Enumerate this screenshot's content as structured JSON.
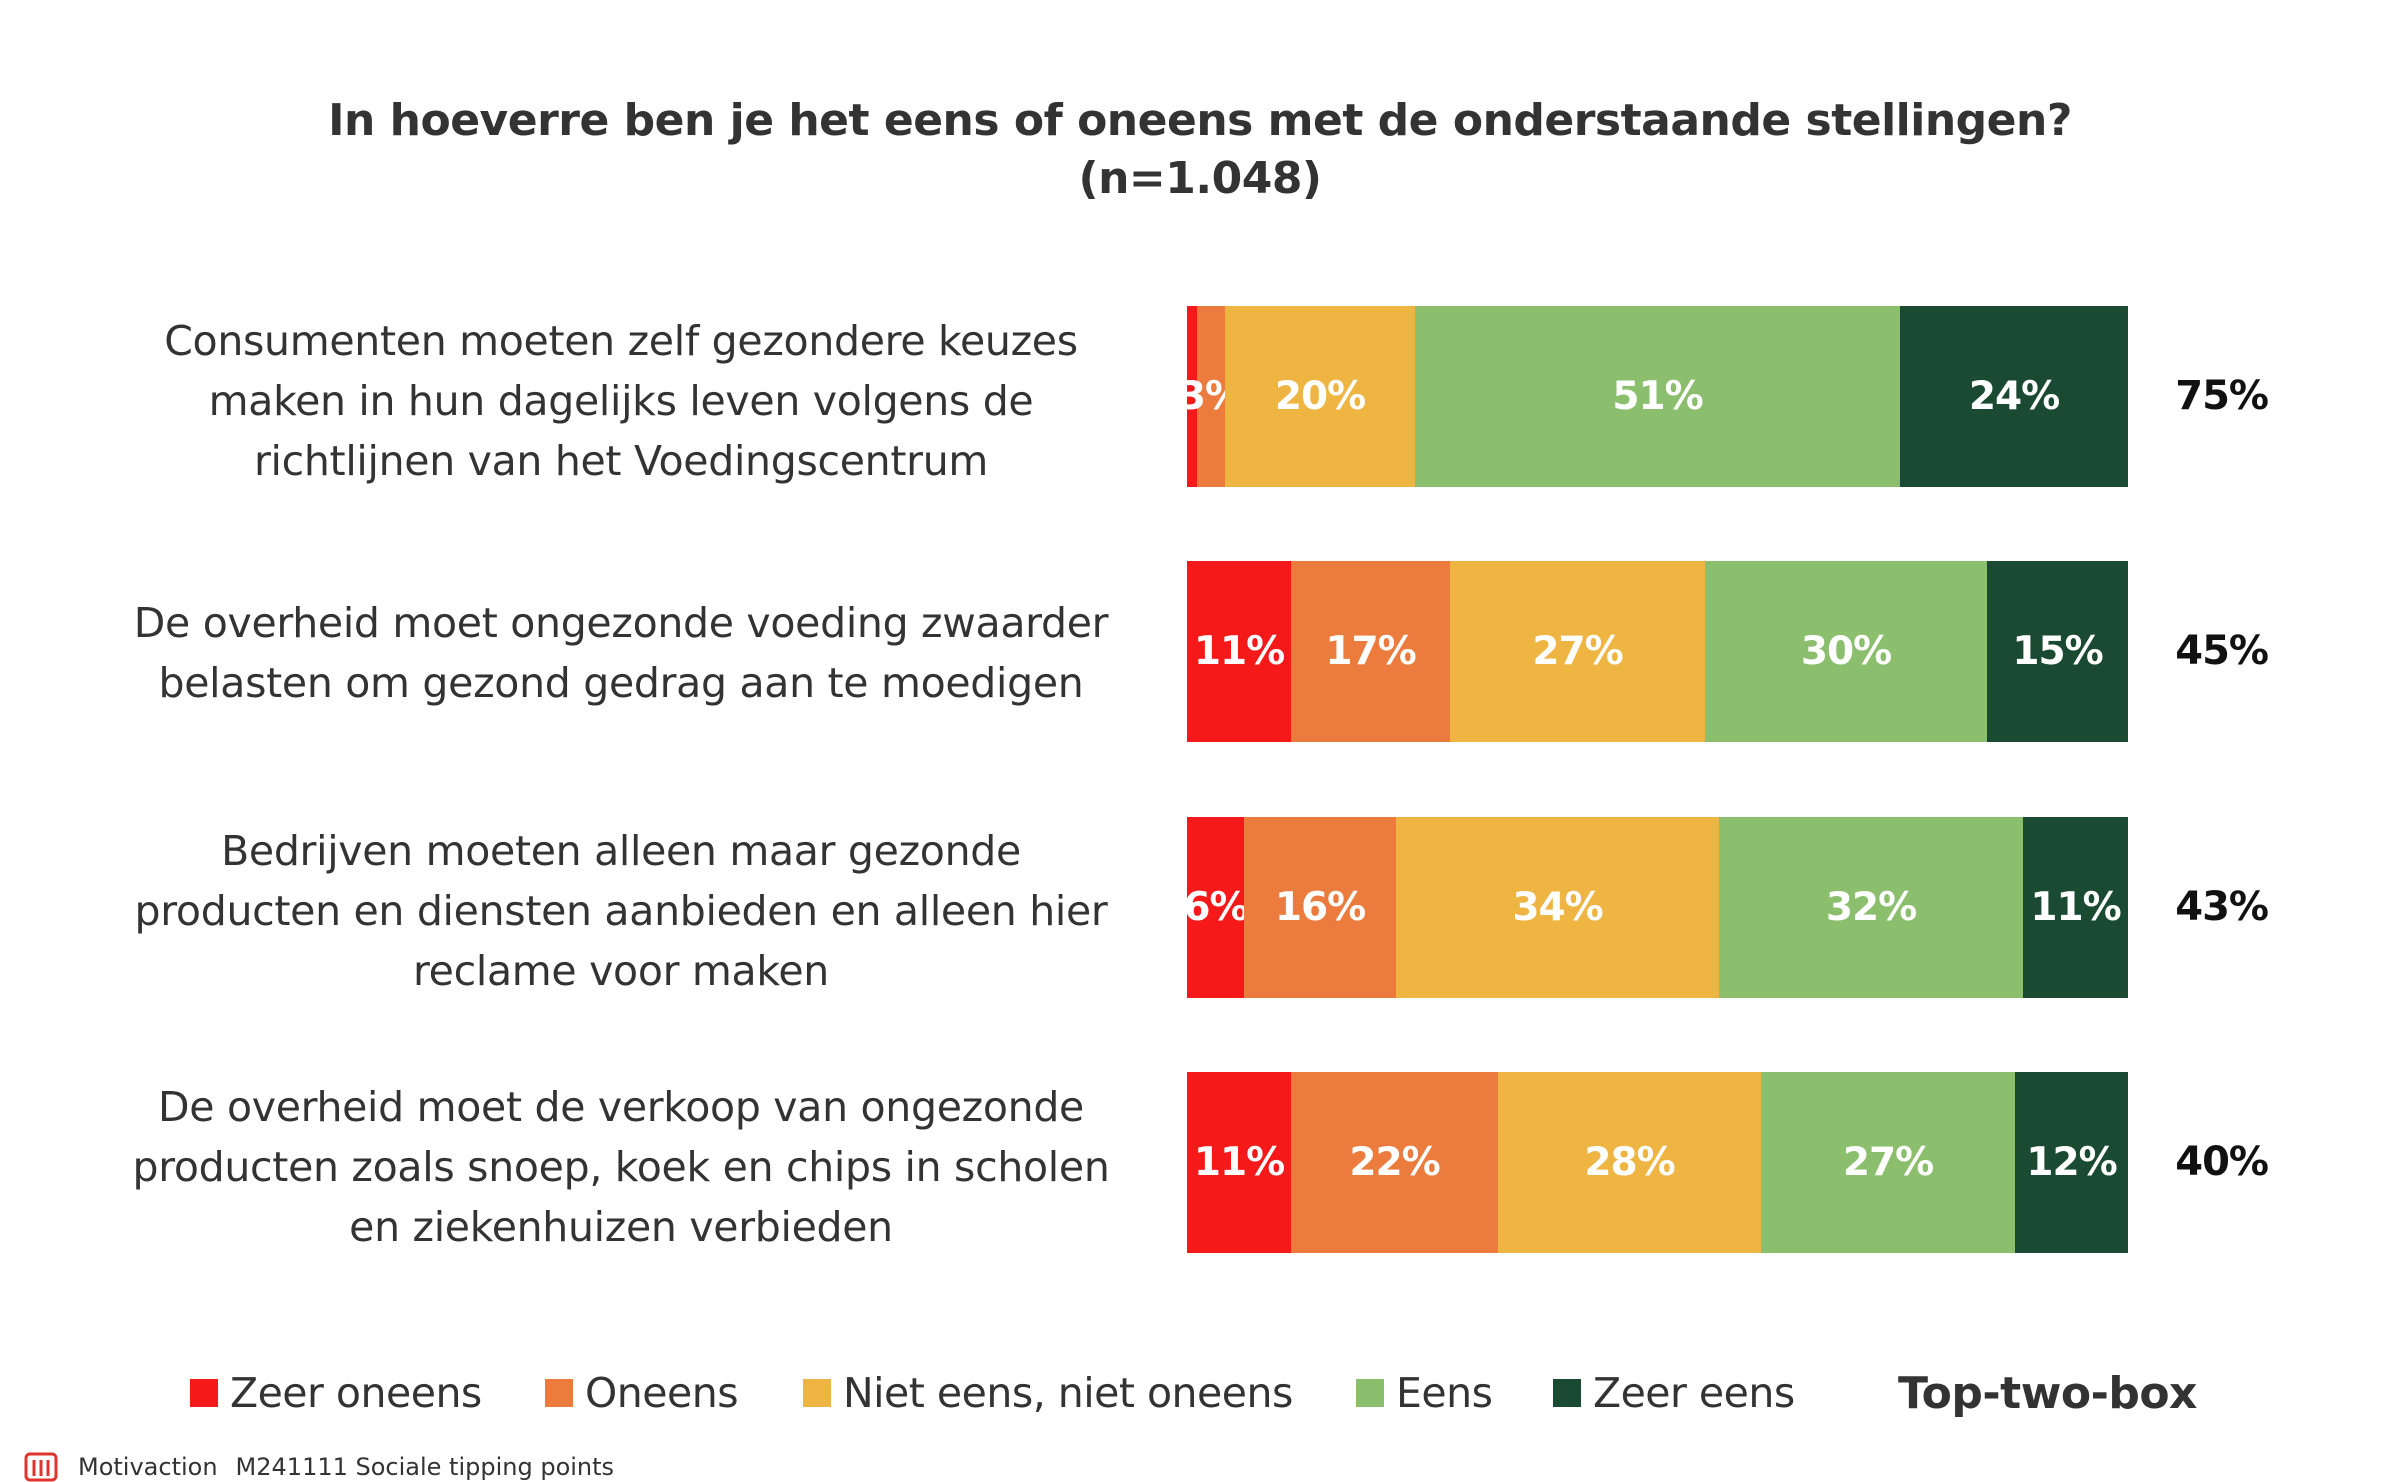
{
  "chart_data": {
    "type": "bar",
    "orientation": "horizontal",
    "stacked": true,
    "normalized": true,
    "title": "In hoeverre ben je het eens of oneens met de onderstaande stellingen?",
    "subtitle": "(n=1.048)",
    "categories": [
      "Consumenten moeten zelf gezondere keuzes maken in hun dagelijks leven volgens de richtlijnen van het Voedingscentrum",
      "De overheid moet ongezonde voeding zwaarder belasten om gezond gedrag aan te moedigen",
      "Bedrijven moeten alleen maar gezonde producten en diensten aanbieden en alleen hier reclame voor maken",
      "De overheid moet de verkoop van ongezonde producten zoals snoep, koek en chips in scholen en ziekenhuizen verbieden"
    ],
    "category_lines": [
      [
        "Consumenten moeten zelf gezondere keuzes",
        "maken in hun dagelijks leven volgens de",
        "richtlijnen van het Voedingscentrum"
      ],
      [
        "De overheid moet ongezonde voeding zwaarder",
        "belasten om gezond gedrag aan te moedigen"
      ],
      [
        "Bedrijven moeten alleen maar gezonde",
        "producten en diensten aanbieden en alleen hier",
        "reclame voor maken"
      ],
      [
        "De overheid moet de verkoop van ongezonde",
        "producten zoals snoep, koek en chips in scholen",
        "en ziekenhuizen verbieden"
      ]
    ],
    "series": [
      {
        "name": "Zeer oneens",
        "color": "#F5191A",
        "values": [
          1,
          11,
          6,
          11
        ],
        "labels": [
          "",
          "11%",
          "6%",
          "11%"
        ]
      },
      {
        "name": "Oneens",
        "color": "#EB7C3E",
        "values": [
          3,
          17,
          16,
          22
        ],
        "labels": [
          "3%",
          "17%",
          "16%",
          "22%"
        ]
      },
      {
        "name": "Niet eens, niet oneens",
        "color": "#EEB542",
        "values": [
          20,
          27,
          34,
          28
        ],
        "labels": [
          "20%",
          "27%",
          "34%",
          "28%"
        ]
      },
      {
        "name": "Eens",
        "color": "#8BBF6E",
        "values": [
          51,
          30,
          32,
          27
        ],
        "labels": [
          "51%",
          "30%",
          "32%",
          "27%"
        ]
      },
      {
        "name": "Zeer eens",
        "color": "#1B4A32",
        "values": [
          24,
          15,
          11,
          12
        ],
        "labels": [
          "24%",
          "15%",
          "11%",
          "12%"
        ]
      }
    ],
    "top_two_box": {
      "name": "Top-two-box",
      "labels": [
        "75%",
        "45%",
        "43%",
        "40%"
      ]
    },
    "xlim": [
      0,
      100
    ],
    "grid": false,
    "legend_position": "bottom"
  },
  "footer": {
    "brand": "Motivaction",
    "project": "M241111 Sociale tipping points"
  }
}
